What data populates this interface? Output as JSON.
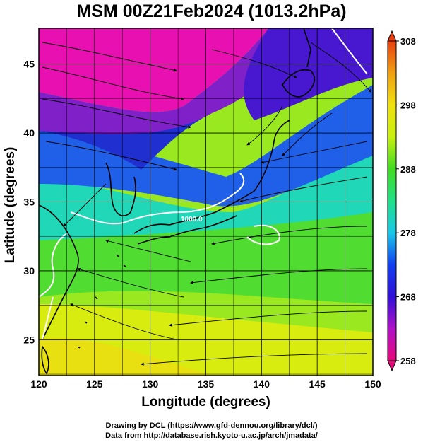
{
  "title": "MSM 00Z21Feb2024 (1013.2hPa)",
  "axes": {
    "xlabel": "Longitude (degrees)",
    "ylabel": "Latitude  (degrees)",
    "xticks": [
      "120",
      "125",
      "130",
      "135",
      "140",
      "145",
      "150"
    ],
    "yticks": [
      "25",
      "30",
      "35",
      "40",
      "45"
    ],
    "xrange": [
      120,
      150
    ],
    "yrange": [
      22.4,
      47.6
    ]
  },
  "colorbar": {
    "ticks": [
      "308",
      "298",
      "288",
      "278",
      "268",
      "258"
    ],
    "range": [
      258,
      308
    ],
    "colors": [
      "#e8087a",
      "#b010c8",
      "#3010d8",
      "#1040f0",
      "#18c8e8",
      "#20e088",
      "#40dc20",
      "#c8f010",
      "#f0e010",
      "#f0a010",
      "#e84010"
    ]
  },
  "contour_label": "1000.0",
  "credits": {
    "line1": "Drawing by DCL (https://www.gfd-dennou.org/library/dcl/)",
    "line2": "Data from http://database.rish.kyoto-u.ac.jp/arch/jmadata/"
  }
}
